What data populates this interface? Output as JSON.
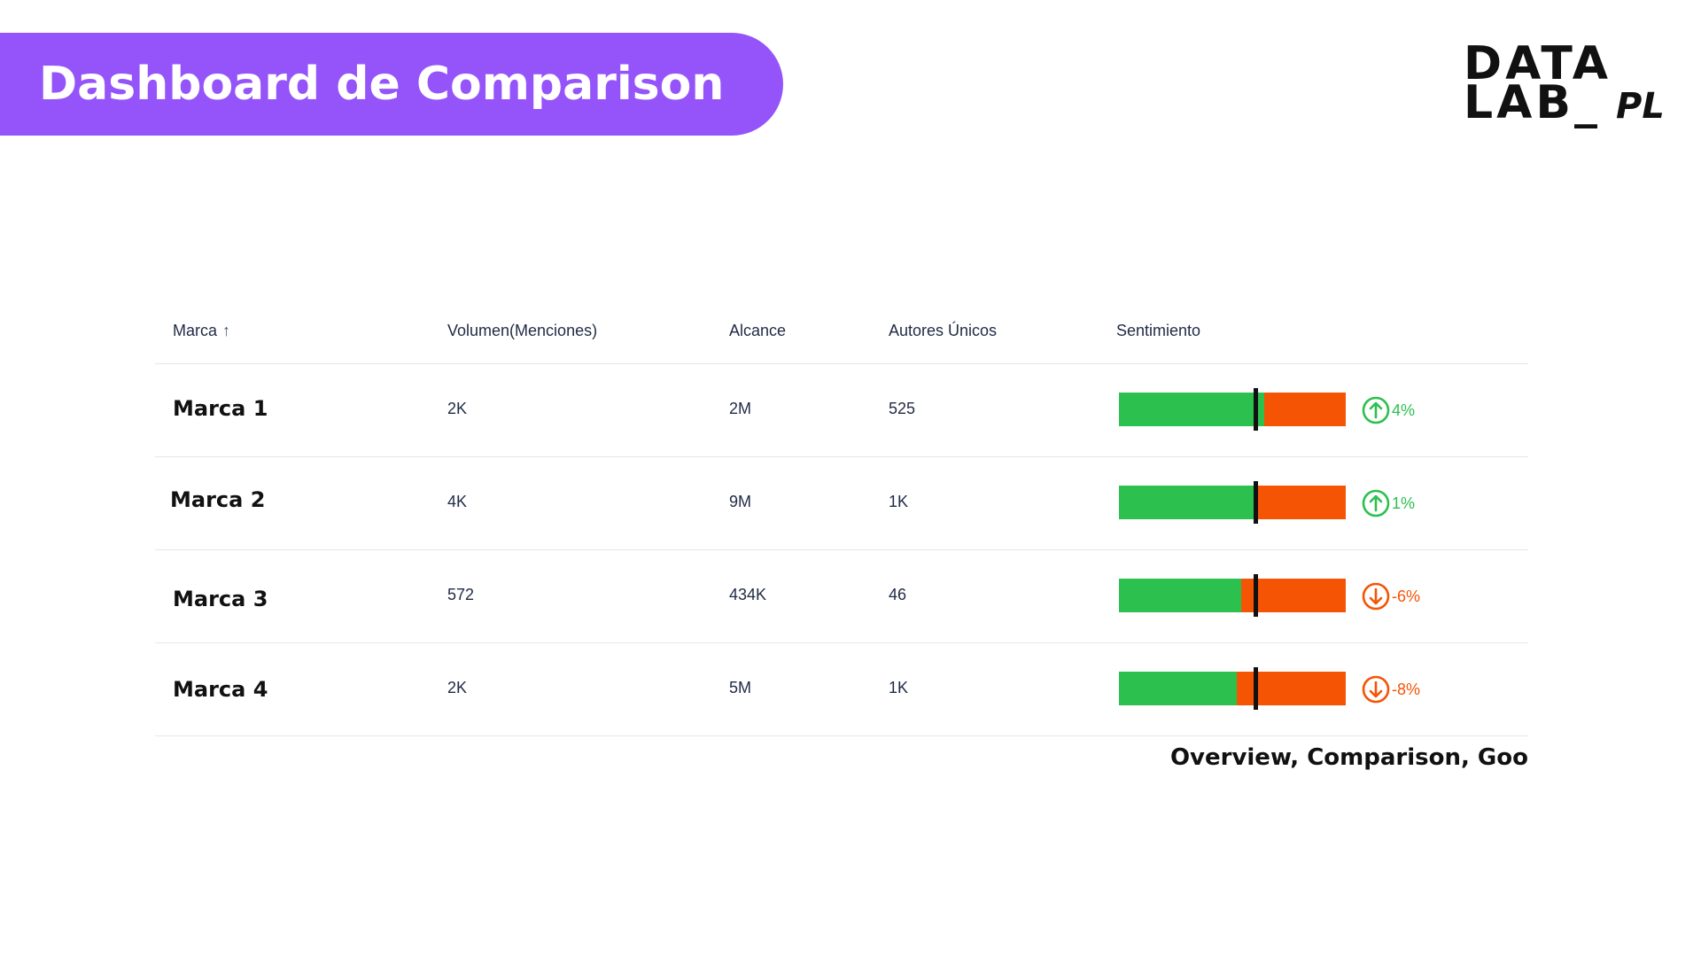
{
  "header": {
    "title": "Dashboard de Comparison"
  },
  "logo": {
    "line1": "DATA",
    "line2": "LAB_",
    "line3": "PL"
  },
  "table": {
    "columns": {
      "brand": "Marca",
      "volume": "Volumen(Menciones)",
      "reach": "Alcance",
      "authors": "Autores Únicos",
      "sentiment": "Sentimiento"
    },
    "rows": [
      {
        "brand": "Marca 1",
        "volume": "2K",
        "reach": "2M",
        "authors": "525",
        "positive_share": 0.64,
        "marker": 0.6,
        "trend": "4%",
        "direction": "up"
      },
      {
        "brand": "Marca 2",
        "volume": "4K",
        "reach": "9M",
        "authors": "1K",
        "positive_share": 0.6,
        "marker": 0.6,
        "trend": "1%",
        "direction": "up"
      },
      {
        "brand": "Marca 3",
        "volume": "572",
        "reach": "434K",
        "authors": "46",
        "positive_share": 0.54,
        "marker": 0.6,
        "trend": "-6%",
        "direction": "down"
      },
      {
        "brand": "Marca 4",
        "volume": "2K",
        "reach": "5M",
        "authors": "1K",
        "positive_share": 0.52,
        "marker": 0.6,
        "trend": "-8%",
        "direction": "down"
      }
    ]
  },
  "footer": {
    "text": "Overview, Comparison, Goo"
  },
  "colors": {
    "accent": "#9554fa",
    "positive": "#2cc04f",
    "negative": "#f55405",
    "marker": "#111111"
  }
}
